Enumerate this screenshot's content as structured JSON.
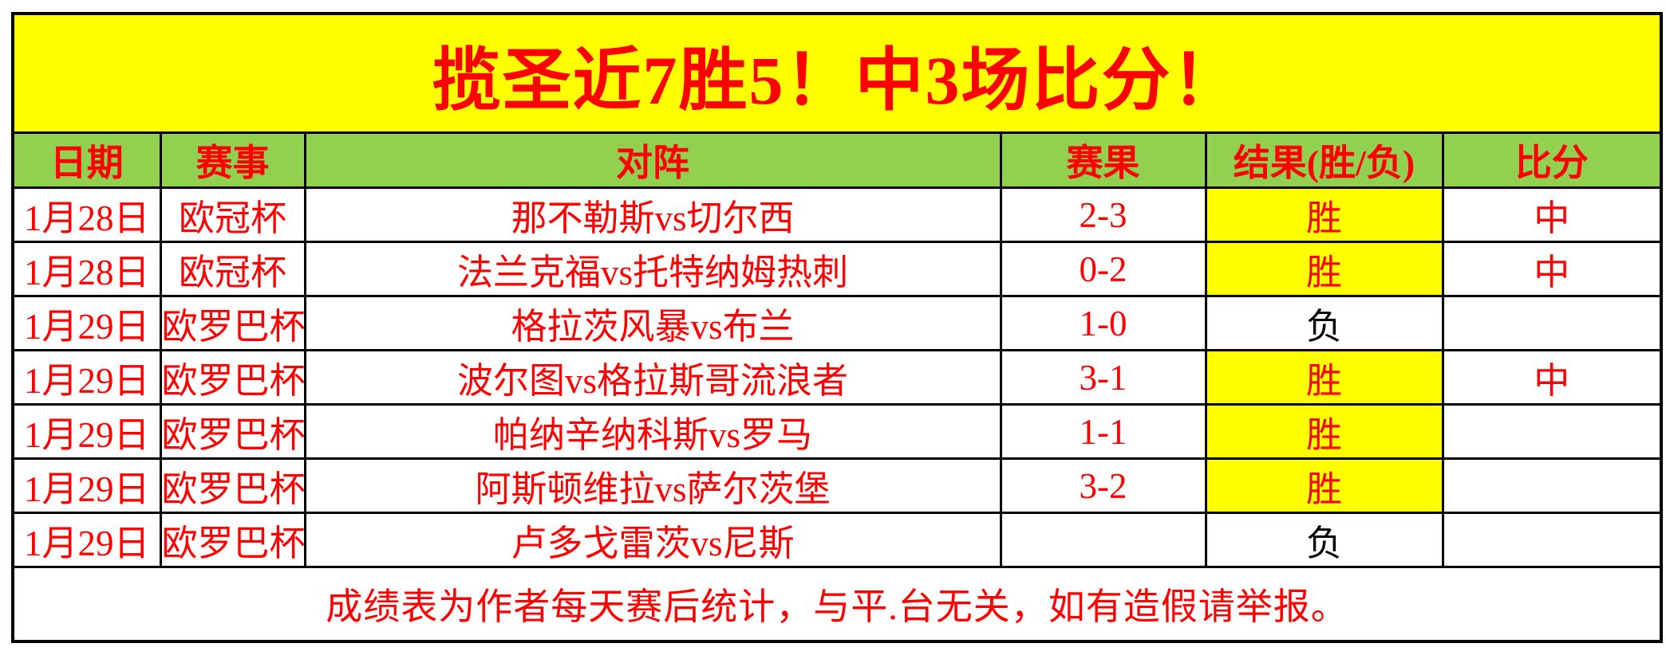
{
  "title": "揽圣近7胜5！中3场比分！",
  "columns": {
    "date": "日期",
    "competition": "赛事",
    "matchup": "对阵",
    "score": "赛果",
    "result": "结果(胜/负)",
    "hit": "比分"
  },
  "rows": [
    {
      "date": "1月28日",
      "competition": "欧冠杯",
      "matchup": "那不勒斯vs切尔西",
      "score": "2-3",
      "result": "胜",
      "outcome": "win",
      "hit": "中"
    },
    {
      "date": "1月28日",
      "competition": "欧冠杯",
      "matchup": "法兰克福vs托特纳姆热刺",
      "score": "0-2",
      "result": "胜",
      "outcome": "win",
      "hit": "中"
    },
    {
      "date": "1月29日",
      "competition": "欧罗巴杯",
      "matchup": "格拉茨风暴vs布兰",
      "score": "1-0",
      "result": "负",
      "outcome": "loss",
      "hit": ""
    },
    {
      "date": "1月29日",
      "competition": "欧罗巴杯",
      "matchup": "波尔图vs格拉斯哥流浪者",
      "score": "3-1",
      "result": "胜",
      "outcome": "win",
      "hit": "中"
    },
    {
      "date": "1月29日",
      "competition": "欧罗巴杯",
      "matchup": "帕纳辛纳科斯vs罗马",
      "score": "1-1",
      "result": "胜",
      "outcome": "win",
      "hit": ""
    },
    {
      "date": "1月29日",
      "competition": "欧罗巴杯",
      "matchup": "阿斯顿维拉vs萨尔茨堡",
      "score": "3-2",
      "result": "胜",
      "outcome": "win",
      "hit": ""
    },
    {
      "date": "1月29日",
      "competition": "欧罗巴杯",
      "matchup": "卢多戈雷茨vs尼斯",
      "score": "",
      "result": "负",
      "outcome": "loss",
      "hit": ""
    }
  ],
  "footer": "成绩表为作者每天赛后统计，与平.台无关，如有造假请举报。",
  "colors": {
    "banner_bg": "#FFFF00",
    "header_bg": "#92D050",
    "accent_text": "#FF0000",
    "win_cell_bg": "#FFFF00",
    "loss_text": "#000000",
    "border": "#000000"
  }
}
